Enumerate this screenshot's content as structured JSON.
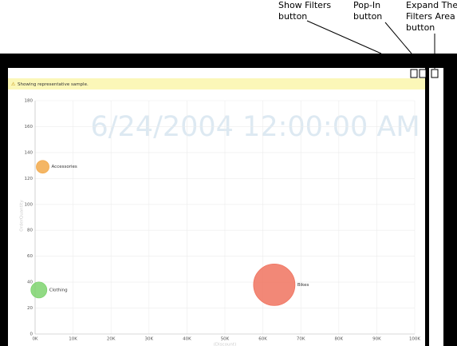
{
  "notice": "Showing representative sample.",
  "callouts": [
    {
      "lines": [
        "Show Filters",
        "button"
      ]
    },
    {
      "lines": [
        "Pop-In",
        "button"
      ]
    },
    {
      "lines": [
        "Expand The",
        "Filters Area",
        "button"
      ]
    }
  ],
  "chart_data": {
    "type": "bubble",
    "title": "6/24/2004 12:00:00 AM",
    "y_label": "OrderQuantity",
    "x_label": "(Discount)",
    "categories": [
      "Accessories",
      "Clothing",
      "Bikes"
    ],
    "x": [
      2000,
      1000,
      63000
    ],
    "values": [
      129,
      34,
      38
    ],
    "sizes": [
      8,
      10,
      26
    ],
    "colors": [
      "#f2a94a",
      "#7ed36f",
      "#f0735f"
    ],
    "xlim": [
      0,
      100000
    ],
    "xticks": [
      {
        "value": 0,
        "label": "0K"
      },
      {
        "value": 10000,
        "label": "10K"
      },
      {
        "value": 20000,
        "label": "20K"
      },
      {
        "value": 30000,
        "label": "30K"
      },
      {
        "value": 40000,
        "label": "40K"
      },
      {
        "value": 50000,
        "label": "50K"
      },
      {
        "value": 60000,
        "label": "60K"
      },
      {
        "value": 70000,
        "label": "70K"
      },
      {
        "value": 80000,
        "label": "80K"
      },
      {
        "value": 90000,
        "label": "90K"
      },
      {
        "value": 100000,
        "label": "100K"
      }
    ],
    "ylim": [
      0,
      180
    ],
    "yticks": [
      0,
      20,
      40,
      60,
      80,
      100,
      120,
      140,
      160,
      180
    ],
    "grid": true
  }
}
